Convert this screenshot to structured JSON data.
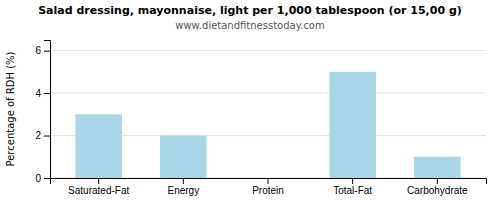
{
  "chart_data": {
    "type": "bar",
    "title": "Salad dressing, mayonnaise, light per 1,000 tablespoon (or 15,00 g)",
    "subtitle": "www.dietandfitnesstoday.com",
    "y_label": "Percentage of RDH (%)",
    "categories": [
      "Saturated-Fat",
      "Energy",
      "Protein",
      "Total-Fat",
      "Carbohydrate"
    ],
    "values": [
      3.0,
      2.0,
      0.0,
      5.0,
      1.0
    ],
    "color": "#a8d8e8",
    "ylim": [
      0,
      6.5
    ],
    "yticks": [
      0,
      2,
      4,
      6
    ],
    "grid": true
  }
}
